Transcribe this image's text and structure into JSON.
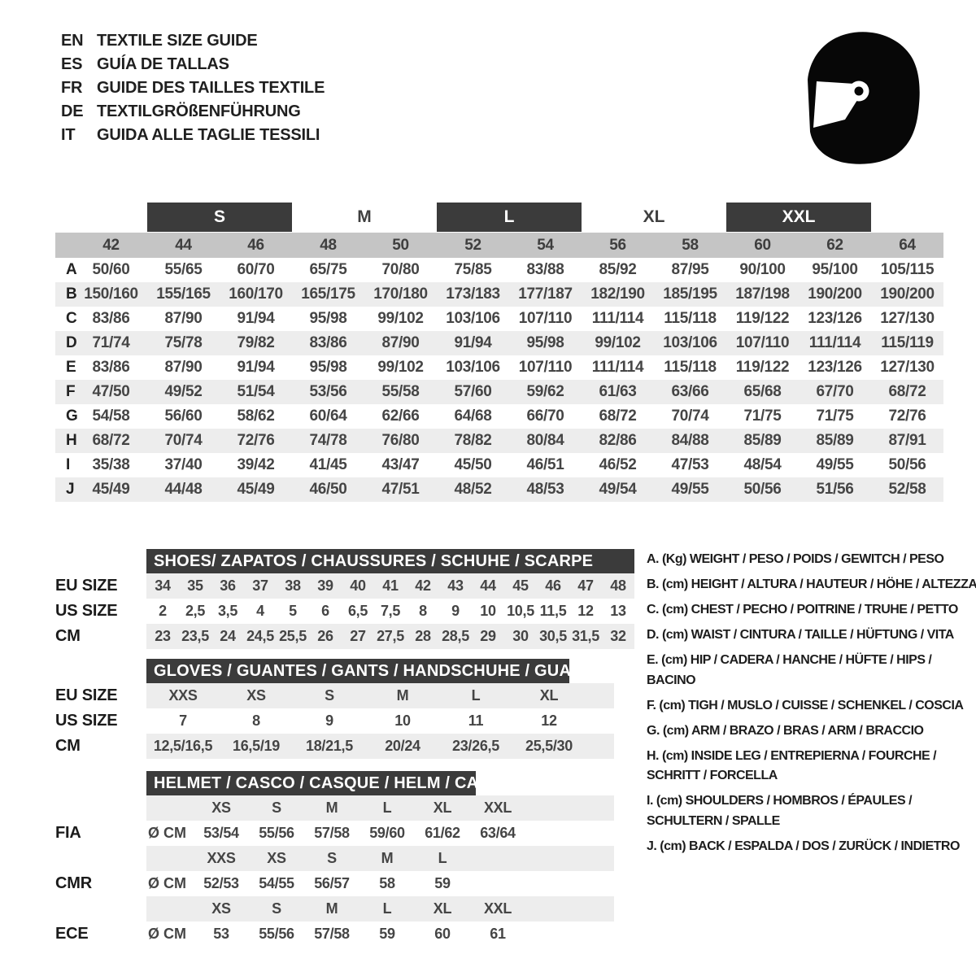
{
  "header": {
    "languages": [
      {
        "code": "EN",
        "title": "TEXTILE SIZE GUIDE"
      },
      {
        "code": "ES",
        "title": "GUÍA DE TALLAS"
      },
      {
        "code": "FR",
        "title": "GUIDE DES TAILLES TEXTILE"
      },
      {
        "code": "DE",
        "title": "TEXTILGRÖßENFÜHRUNG"
      },
      {
        "code": "IT",
        "title": "GUIDA ALLE TAGLIE TESSILI"
      }
    ]
  },
  "colors": {
    "dark_bar": "#3b3b3b",
    "numbers_band": "#c5c5c5",
    "stripe": "#ededed"
  },
  "main_table": {
    "size_groups": [
      {
        "label": "S",
        "boxed": true
      },
      {
        "label": "M",
        "boxed": false
      },
      {
        "label": "L",
        "boxed": true
      },
      {
        "label": "XL",
        "boxed": false
      },
      {
        "label": "XXL",
        "boxed": true
      }
    ],
    "numeric_sizes": [
      "42",
      "44",
      "46",
      "48",
      "50",
      "52",
      "54",
      "56",
      "58",
      "60",
      "62",
      "64"
    ],
    "rows": [
      {
        "label": "A",
        "values": [
          "50/60",
          "55/65",
          "60/70",
          "65/75",
          "70/80",
          "75/85",
          "83/88",
          "85/92",
          "87/95",
          "90/100",
          "95/100",
          "105/115"
        ]
      },
      {
        "label": "B",
        "values": [
          "150/160",
          "155/165",
          "160/170",
          "165/175",
          "170/180",
          "173/183",
          "177/187",
          "182/190",
          "185/195",
          "187/198",
          "190/200",
          "190/200"
        ]
      },
      {
        "label": "C",
        "values": [
          "83/86",
          "87/90",
          "91/94",
          "95/98",
          "99/102",
          "103/106",
          "107/110",
          "111/114",
          "115/118",
          "119/122",
          "123/126",
          "127/130"
        ]
      },
      {
        "label": "D",
        "values": [
          "71/74",
          "75/78",
          "79/82",
          "83/86",
          "87/90",
          "91/94",
          "95/98",
          "99/102",
          "103/106",
          "107/110",
          "111/114",
          "115/119"
        ]
      },
      {
        "label": "E",
        "values": [
          "83/86",
          "87/90",
          "91/94",
          "95/98",
          "99/102",
          "103/106",
          "107/110",
          "111/114",
          "115/118",
          "119/122",
          "123/126",
          "127/130"
        ]
      },
      {
        "label": "F",
        "values": [
          "47/50",
          "49/52",
          "51/54",
          "53/56",
          "55/58",
          "57/60",
          "59/62",
          "61/63",
          "63/66",
          "65/68",
          "67/70",
          "68/72"
        ]
      },
      {
        "label": "G",
        "values": [
          "54/58",
          "56/60",
          "58/62",
          "60/64",
          "62/66",
          "64/68",
          "66/70",
          "68/72",
          "70/74",
          "71/75",
          "71/75",
          "72/76"
        ]
      },
      {
        "label": "H",
        "values": [
          "68/72",
          "70/74",
          "72/76",
          "74/78",
          "76/80",
          "78/82",
          "80/84",
          "82/86",
          "84/88",
          "85/89",
          "85/89",
          "87/91"
        ]
      },
      {
        "label": "I",
        "values": [
          "35/38",
          "37/40",
          "39/42",
          "41/45",
          "43/47",
          "45/50",
          "46/51",
          "46/52",
          "47/53",
          "48/54",
          "49/55",
          "50/56"
        ]
      },
      {
        "label": "J",
        "values": [
          "45/49",
          "44/48",
          "45/49",
          "46/50",
          "47/51",
          "48/52",
          "48/53",
          "49/54",
          "49/55",
          "50/56",
          "51/56",
          "52/58"
        ]
      }
    ]
  },
  "shoes": {
    "title": "SHOES/ ZAPATOS / CHAUSSURES / SCHUHE / SCARPE",
    "rows": [
      {
        "label": "EU SIZE",
        "values": [
          "34",
          "35",
          "36",
          "37",
          "38",
          "39",
          "40",
          "41",
          "42",
          "43",
          "44",
          "45",
          "46",
          "47",
          "48"
        ]
      },
      {
        "label": "US SIZE",
        "values": [
          "2",
          "2,5",
          "3,5",
          "4",
          "5",
          "6",
          "6,5",
          "7,5",
          "8",
          "9",
          "10",
          "10,5",
          "11,5",
          "12",
          "13"
        ]
      },
      {
        "label": "CM",
        "values": [
          "23",
          "23,5",
          "24",
          "24,5",
          "25,5",
          "26",
          "27",
          "27,5",
          "28",
          "28,5",
          "29",
          "30",
          "30,5",
          "31,5",
          "32"
        ]
      }
    ]
  },
  "gloves": {
    "title": "GLOVES / GUANTES / GANTS / HANDSCHUHE / GUANTI",
    "rows": [
      {
        "label": "EU SIZE",
        "values": [
          "XXS",
          "XS",
          "S",
          "M",
          "L",
          "XL"
        ]
      },
      {
        "label": "US SIZE",
        "values": [
          "7",
          "8",
          "9",
          "10",
          "11",
          "12"
        ]
      },
      {
        "label": "CM",
        "values": [
          "12,5/16,5",
          "16,5/19",
          "18/21,5",
          "20/24",
          "23/26,5",
          "25,5/30"
        ]
      }
    ]
  },
  "helmet": {
    "title": "HELMET / CASCO / CASQUE / HELM / CASCO",
    "standards": [
      {
        "label": "FIA",
        "unit": "Ø CM",
        "sizes": [
          "XS",
          "S",
          "M",
          "L",
          "XL",
          "XXL"
        ],
        "values": [
          "53/54",
          "55/56",
          "57/58",
          "59/60",
          "61/62",
          "63/64"
        ]
      },
      {
        "label": "CMR",
        "unit": "Ø CM",
        "sizes": [
          "XXS",
          "XS",
          "S",
          "M",
          "L",
          ""
        ],
        "values": [
          "52/53",
          "54/55",
          "56/57",
          "58",
          "59",
          ""
        ]
      },
      {
        "label": "ECE",
        "unit": "Ø CM",
        "sizes": [
          "XS",
          "S",
          "M",
          "L",
          "XL",
          "XXL"
        ],
        "values": [
          "53",
          "55/56",
          "57/58",
          "59",
          "60",
          "61"
        ]
      }
    ]
  },
  "legend": {
    "items": [
      "A. (Kg) WEIGHT / PESO / POIDS / GEWITCH / PESO",
      "B. (cm) HEIGHT / ALTURA / HAUTEUR / HÖHE / ALTEZZA",
      "C. (cm) CHEST / PECHO / POITRINE / TRUHE / PETTO",
      "D. (cm) WAIST / CINTURA / TAILLE / HÜFTUNG / VITA",
      "E. (cm) HIP / CADERA / HANCHE / HÜFTE / HIPS / BACINO",
      "F. (cm) TIGH / MUSLO / CUISSE / SCHENKEL / COSCIA",
      "G. (cm) ARM / BRAZO / BRAS / ARM / BRACCIO",
      "H. (cm) INSIDE LEG / ENTREPIERNA / FOURCHE /\nSCHRITT / FORCELLA",
      "I. (cm) SHOULDERS / HOMBROS / ÉPAULES /\nSCHULTERN / SPALLE",
      "J. (cm) BACK / ESPALDA / DOS / ZURÜCK / INDIETRO"
    ]
  },
  "icons": {
    "helmet": "racing-helmet"
  }
}
